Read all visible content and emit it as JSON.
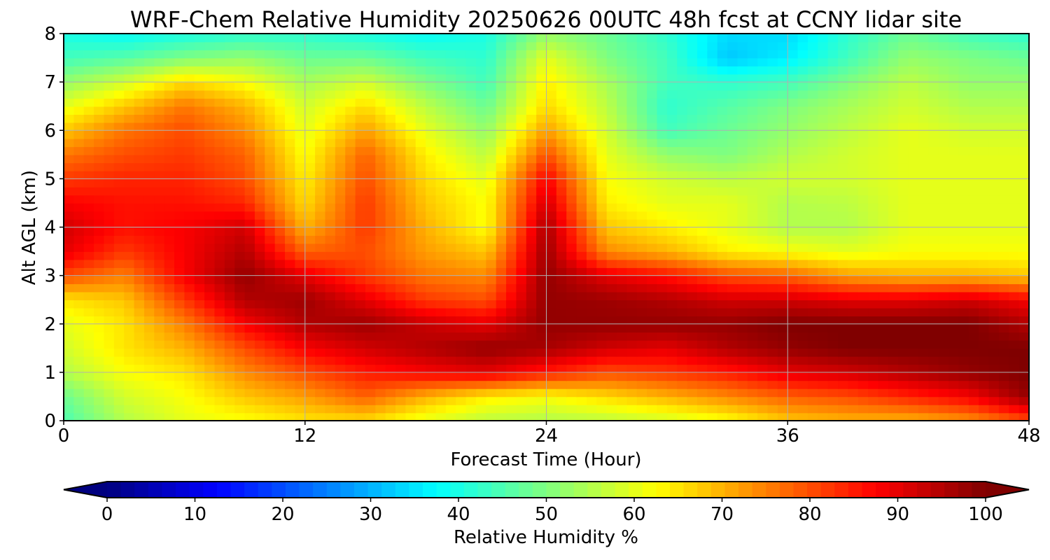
{
  "chart_data": {
    "type": "heatmap",
    "title": "WRF-Chem Relative Humidity 20250626 00UTC 48h fcst at CCNY lidar site",
    "xlabel": "Forecast Time (Hour)",
    "ylabel": "Alt AGL (km)",
    "xlim": [
      0,
      48
    ],
    "ylim": [
      0,
      8
    ],
    "x_ticks": [
      "0",
      "12",
      "24",
      "36",
      "48"
    ],
    "y_ticks": [
      "0",
      "1",
      "2",
      "3",
      "4",
      "5",
      "6",
      "7",
      "8"
    ],
    "grid": true,
    "colormap": "jet",
    "colorbar": {
      "label": "Relative Humidity %",
      "range": [
        0,
        100
      ],
      "ticks": [
        "0",
        "10",
        "20",
        "30",
        "40",
        "50",
        "60",
        "70",
        "80",
        "90",
        "100"
      ],
      "extend": "both",
      "position": "bottom"
    },
    "x": [
      0,
      3,
      6,
      9,
      12,
      15,
      18,
      21,
      24,
      27,
      30,
      33,
      36,
      39,
      42,
      45,
      48
    ],
    "y": [
      0,
      0.5,
      1,
      1.5,
      2,
      2.5,
      3,
      3.5,
      4,
      4.5,
      5,
      5.5,
      6,
      6.5,
      7,
      7.5,
      8
    ],
    "z": [
      [
        45,
        55,
        60,
        62,
        65,
        66,
        60,
        56,
        55,
        56,
        58,
        62,
        68,
        70,
        70,
        73,
        80
      ],
      [
        48,
        58,
        62,
        68,
        72,
        78,
        70,
        64,
        62,
        66,
        70,
        74,
        78,
        80,
        84,
        88,
        98
      ],
      [
        55,
        62,
        65,
        74,
        80,
        85,
        88,
        90,
        85,
        80,
        82,
        85,
        90,
        92,
        95,
        98,
        100
      ],
      [
        58,
        65,
        70,
        80,
        88,
        92,
        95,
        98,
        96,
        92,
        90,
        95,
        98,
        100,
        100,
        100,
        100
      ],
      [
        60,
        65,
        75,
        88,
        95,
        97,
        93,
        90,
        98,
        98,
        98,
        98,
        100,
        100,
        100,
        100,
        95
      ],
      [
        65,
        68,
        82,
        95,
        97,
        90,
        82,
        80,
        98,
        97,
        95,
        92,
        92,
        90,
        90,
        92,
        88
      ],
      [
        80,
        75,
        88,
        98,
        90,
        82,
        76,
        74,
        98,
        90,
        86,
        80,
        78,
        72,
        70,
        70,
        68
      ],
      [
        90,
        82,
        88,
        95,
        78,
        80,
        72,
        68,
        97,
        74,
        70,
        64,
        62,
        60,
        62,
        62,
        62
      ],
      [
        92,
        86,
        88,
        92,
        70,
        82,
        70,
        62,
        96,
        68,
        64,
        60,
        55,
        55,
        60,
        60,
        60
      ],
      [
        88,
        86,
        86,
        84,
        66,
        82,
        68,
        62,
        92,
        64,
        60,
        60,
        55,
        56,
        60,
        60,
        60
      ],
      [
        82,
        84,
        84,
        80,
        64,
        80,
        66,
        60,
        88,
        62,
        58,
        56,
        58,
        58,
        60,
        60,
        60
      ],
      [
        76,
        80,
        82,
        78,
        62,
        78,
        64,
        56,
        80,
        60,
        52,
        50,
        55,
        58,
        60,
        60,
        60
      ],
      [
        68,
        76,
        80,
        74,
        60,
        72,
        60,
        52,
        72,
        58,
        44,
        48,
        52,
        56,
        60,
        58,
        58
      ],
      [
        60,
        68,
        76,
        70,
        58,
        66,
        56,
        48,
        66,
        56,
        42,
        46,
        50,
        54,
        58,
        55,
        55
      ],
      [
        52,
        58,
        66,
        62,
        54,
        58,
        50,
        44,
        64,
        54,
        44,
        42,
        44,
        50,
        56,
        52,
        52
      ],
      [
        44,
        46,
        50,
        52,
        48,
        48,
        44,
        42,
        60,
        50,
        44,
        32,
        36,
        44,
        52,
        50,
        48
      ],
      [
        40,
        38,
        40,
        42,
        42,
        40,
        38,
        40,
        52,
        48,
        42,
        34,
        34,
        42,
        48,
        44,
        42
      ]
    ]
  }
}
